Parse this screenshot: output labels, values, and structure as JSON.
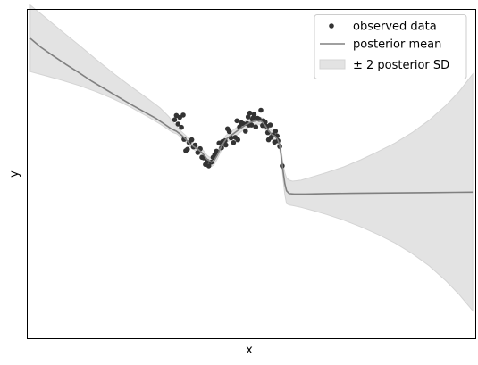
{
  "chart_data": {
    "type": "scatter",
    "title": "",
    "xlabel": "x",
    "ylabel": "y",
    "grid": false,
    "ticks_visible": false,
    "legend_placement": "upper-right",
    "xlim": [
      -2.0,
      3.24
    ],
    "ylim": [
      -4.0,
      2.9
    ],
    "colors": {
      "points": "#333333",
      "mean": "#808080",
      "band_fill": "#e3e3e3",
      "band_edge": "#d4d4d4"
    },
    "series": [
      {
        "name": "observed data",
        "kind": "scatter",
        "points": [
          [
            -0.28,
            0.59
          ],
          [
            -0.26,
            0.68
          ],
          [
            -0.24,
            0.5
          ],
          [
            -0.22,
            0.64
          ],
          [
            -0.2,
            0.43
          ],
          [
            -0.18,
            0.69
          ],
          [
            -0.17,
            0.18
          ],
          [
            -0.15,
            -0.06
          ],
          [
            -0.13,
            -0.03
          ],
          [
            -0.11,
            0.11
          ],
          [
            -0.08,
            0.17
          ],
          [
            -0.06,
            0.02
          ],
          [
            -0.04,
            0.06
          ],
          [
            -0.01,
            -0.1
          ],
          [
            0.02,
            -0.02
          ],
          [
            0.04,
            -0.2
          ],
          [
            0.06,
            -0.21
          ],
          [
            0.08,
            -0.35
          ],
          [
            0.1,
            -0.28
          ],
          [
            0.12,
            -0.38
          ],
          [
            0.15,
            -0.3
          ],
          [
            0.17,
            -0.2
          ],
          [
            0.19,
            -0.14
          ],
          [
            0.21,
            -0.07
          ],
          [
            0.24,
            0.1
          ],
          [
            0.27,
            0.0
          ],
          [
            0.28,
            0.13
          ],
          [
            0.31,
            0.15
          ],
          [
            0.32,
            0.06
          ],
          [
            0.34,
            0.4
          ],
          [
            0.36,
            0.34
          ],
          [
            0.38,
            0.21
          ],
          [
            0.41,
            0.11
          ],
          [
            0.43,
            0.22
          ],
          [
            0.45,
            0.57
          ],
          [
            0.46,
            0.17
          ],
          [
            0.48,
            0.44
          ],
          [
            0.5,
            0.53
          ],
          [
            0.52,
            0.51
          ],
          [
            0.55,
            0.35
          ],
          [
            0.57,
            0.51
          ],
          [
            0.58,
            0.65
          ],
          [
            0.59,
            0.48
          ],
          [
            0.6,
            0.73
          ],
          [
            0.62,
            0.48
          ],
          [
            0.63,
            0.6
          ],
          [
            0.64,
            0.63
          ],
          [
            0.65,
            0.7
          ],
          [
            0.67,
            0.44
          ],
          [
            0.69,
            0.62
          ],
          [
            0.71,
            0.6
          ],
          [
            0.73,
            0.79
          ],
          [
            0.75,
            0.47
          ],
          [
            0.76,
            0.57
          ],
          [
            0.78,
            0.54
          ],
          [
            0.8,
            0.45
          ],
          [
            0.81,
            0.32
          ],
          [
            0.82,
            0.17
          ],
          [
            0.84,
            0.48
          ],
          [
            0.85,
            0.22
          ],
          [
            0.87,
            0.27
          ],
          [
            0.89,
            0.12
          ],
          [
            0.9,
            0.35
          ],
          [
            0.92,
            0.25
          ],
          [
            0.93,
            0.15
          ],
          [
            0.95,
            0.03
          ],
          [
            0.98,
            -0.38
          ]
        ]
      },
      {
        "name": "posterior mean",
        "kind": "line",
        "points": [
          [
            -1.97,
            2.3
          ],
          [
            -1.85,
            2.12
          ],
          [
            -1.7,
            1.93
          ],
          [
            -1.55,
            1.75
          ],
          [
            -1.4,
            1.58
          ],
          [
            -1.25,
            1.4
          ],
          [
            -1.1,
            1.24
          ],
          [
            -0.95,
            1.08
          ],
          [
            -0.8,
            0.92
          ],
          [
            -0.65,
            0.77
          ],
          [
            -0.5,
            0.62
          ],
          [
            -0.4,
            0.5
          ],
          [
            -0.32,
            0.4
          ],
          [
            -0.26,
            0.35
          ],
          [
            -0.2,
            0.27
          ],
          [
            -0.15,
            0.18
          ],
          [
            -0.1,
            0.08
          ],
          [
            -0.05,
            0.02
          ],
          [
            0.0,
            -0.04
          ],
          [
            0.05,
            -0.12
          ],
          [
            0.1,
            -0.24
          ],
          [
            0.15,
            -0.3
          ],
          [
            0.18,
            -0.27
          ],
          [
            0.22,
            -0.15
          ],
          [
            0.27,
            0.04
          ],
          [
            0.32,
            0.18
          ],
          [
            0.38,
            0.26
          ],
          [
            0.44,
            0.34
          ],
          [
            0.5,
            0.42
          ],
          [
            0.55,
            0.48
          ],
          [
            0.6,
            0.53
          ],
          [
            0.65,
            0.56
          ],
          [
            0.7,
            0.58
          ],
          [
            0.74,
            0.55
          ],
          [
            0.78,
            0.47
          ],
          [
            0.82,
            0.36
          ],
          [
            0.86,
            0.28
          ],
          [
            0.9,
            0.24
          ],
          [
            0.93,
            0.16
          ],
          [
            0.95,
            0.05
          ],
          [
            0.97,
            -0.2
          ],
          [
            0.99,
            -0.5
          ],
          [
            1.01,
            -0.75
          ],
          [
            1.03,
            -0.9
          ],
          [
            1.06,
            -0.96
          ],
          [
            1.12,
            -0.97
          ],
          [
            1.25,
            -0.97
          ],
          [
            1.5,
            -0.96
          ],
          [
            1.8,
            -0.955
          ],
          [
            2.1,
            -0.95
          ],
          [
            2.4,
            -0.945
          ],
          [
            2.7,
            -0.94
          ],
          [
            3.0,
            -0.935
          ],
          [
            3.21,
            -0.93
          ]
        ]
      },
      {
        "name": "± 2 posterior SD",
        "kind": "band",
        "points": [
          [
            -1.97,
            1.6,
            3.0
          ],
          [
            -1.8,
            1.52,
            2.75
          ],
          [
            -1.6,
            1.42,
            2.45
          ],
          [
            -1.4,
            1.31,
            2.16
          ],
          [
            -1.2,
            1.18,
            1.86
          ],
          [
            -1.0,
            1.03,
            1.57
          ],
          [
            -0.8,
            0.86,
            1.3
          ],
          [
            -0.6,
            0.66,
            1.04
          ],
          [
            -0.45,
            0.5,
            0.84
          ],
          [
            -0.35,
            0.38,
            0.66
          ],
          [
            -0.3,
            0.32,
            0.55
          ],
          [
            -0.25,
            0.29,
            0.44
          ],
          [
            -0.2,
            0.21,
            0.34
          ],
          [
            -0.15,
            0.12,
            0.26
          ],
          [
            -0.1,
            0.02,
            0.16
          ],
          [
            -0.05,
            -0.04,
            0.09
          ],
          [
            0.0,
            -0.11,
            0.03
          ],
          [
            0.05,
            -0.2,
            -0.04
          ],
          [
            0.1,
            -0.32,
            -0.16
          ],
          [
            0.15,
            -0.39,
            -0.22
          ],
          [
            0.18,
            -0.36,
            -0.18
          ],
          [
            0.22,
            -0.23,
            -0.07
          ],
          [
            0.27,
            -0.04,
            0.12
          ],
          [
            0.32,
            0.1,
            0.26
          ],
          [
            0.38,
            0.18,
            0.34
          ],
          [
            0.44,
            0.26,
            0.42
          ],
          [
            0.5,
            0.34,
            0.5
          ],
          [
            0.55,
            0.4,
            0.56
          ],
          [
            0.6,
            0.45,
            0.61
          ],
          [
            0.65,
            0.48,
            0.64
          ],
          [
            0.7,
            0.5,
            0.66
          ],
          [
            0.74,
            0.47,
            0.63
          ],
          [
            0.78,
            0.39,
            0.55
          ],
          [
            0.82,
            0.28,
            0.44
          ],
          [
            0.86,
            0.2,
            0.36
          ],
          [
            0.9,
            0.16,
            0.32
          ],
          [
            0.93,
            0.07,
            0.25
          ],
          [
            0.95,
            -0.04,
            0.14
          ],
          [
            0.97,
            -0.32,
            -0.08
          ],
          [
            0.99,
            -0.66,
            -0.34
          ],
          [
            1.01,
            -0.98,
            -0.52
          ],
          [
            1.03,
            -1.17,
            -0.63
          ],
          [
            1.06,
            -1.2,
            -0.68
          ],
          [
            1.1,
            -1.21,
            -0.7
          ],
          [
            1.2,
            -1.25,
            -0.68
          ],
          [
            1.35,
            -1.32,
            -0.6
          ],
          [
            1.5,
            -1.4,
            -0.52
          ],
          [
            1.7,
            -1.52,
            -0.4
          ],
          [
            1.9,
            -1.66,
            -0.25
          ],
          [
            2.1,
            -1.82,
            -0.08
          ],
          [
            2.3,
            -2.0,
            0.1
          ],
          [
            2.5,
            -2.22,
            0.32
          ],
          [
            2.7,
            -2.48,
            0.58
          ],
          [
            2.9,
            -2.8,
            0.9
          ],
          [
            3.05,
            -3.08,
            1.18
          ],
          [
            3.21,
            -3.42,
            1.55
          ]
        ]
      }
    ]
  }
}
